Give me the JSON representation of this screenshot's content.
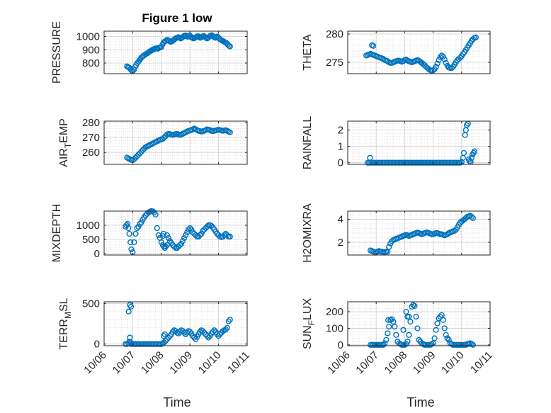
{
  "title": "Figure 1 low",
  "xlabel": "Time",
  "colors": {
    "marker": "#0072BD",
    "axis": "#262626",
    "grid": "#d9d9d9",
    "bg": "#ffffff"
  },
  "chart_data": [
    {
      "type": "scatter",
      "ylabel_parts": [
        "PRESSURE"
      ],
      "xlim": [
        6.0,
        11.0
      ],
      "ylim": [
        720,
        1040
      ],
      "yticks": [
        800,
        900,
        1000
      ],
      "x": [
        6.8,
        6.84,
        6.88,
        6.92,
        6.96,
        7.0,
        7.04,
        7.08,
        7.12,
        7.16,
        7.2,
        7.24,
        7.28,
        7.32,
        7.36,
        7.4,
        7.44,
        7.48,
        7.52,
        7.56,
        7.6,
        7.64,
        7.68,
        7.72,
        7.76,
        7.8,
        7.84,
        7.88,
        7.92,
        7.96,
        8.0,
        8.04,
        8.08,
        8.12,
        8.16,
        8.2,
        8.24,
        8.28,
        8.32,
        8.36,
        8.4,
        8.44,
        8.48,
        8.52,
        8.56,
        8.6,
        8.64,
        8.68,
        8.72,
        8.76,
        8.8,
        8.84,
        8.88,
        8.92,
        8.96,
        9.0,
        9.04,
        9.08,
        9.12,
        9.16,
        9.2,
        9.24,
        9.28,
        9.32,
        9.36,
        9.4,
        9.44,
        9.48,
        9.52,
        9.56,
        9.6,
        9.64,
        9.68,
        9.72,
        9.76,
        9.8,
        9.84,
        9.88,
        9.92,
        9.96,
        10.0,
        10.04,
        10.08,
        10.12,
        10.16,
        10.2,
        10.24,
        10.28,
        10.32,
        10.36,
        10.4
      ],
      "y": [
        775,
        770,
        765,
        755,
        745,
        740,
        750,
        770,
        785,
        800,
        810,
        822,
        835,
        845,
        852,
        858,
        865,
        870,
        875,
        882,
        888,
        892,
        898,
        902,
        906,
        910,
        912,
        908,
        915,
        918,
        920,
        940,
        955,
        962,
        968,
        975,
        972,
        965,
        960,
        962,
        968,
        975,
        982,
        988,
        992,
        995,
        990,
        985,
        990,
        998,
        1005,
        1008,
        1002,
        998,
        1004,
        1008,
        995,
        990,
        985,
        988,
        995,
        1000,
        1002,
        996,
        990,
        994,
        1000,
        1004,
        998,
        990,
        985,
        992,
        1000,
        1006,
        1010,
        1004,
        998,
        990,
        995,
        1000,
        990,
        980,
        975,
        970,
        965,
        960,
        955,
        950,
        940,
        930,
        925
      ]
    },
    {
      "type": "scatter",
      "ylabel_parts": [
        "THETA"
      ],
      "xlim": [
        6.0,
        11.0
      ],
      "ylim": [
        273,
        280.5
      ],
      "yticks": [
        275,
        280
      ],
      "x": [
        6.65,
        6.7,
        6.75,
        6.8,
        6.85,
        6.9,
        6.95,
        7.0,
        7.05,
        7.1,
        7.15,
        7.2,
        7.25,
        7.3,
        7.35,
        7.4,
        7.45,
        7.5,
        7.55,
        7.6,
        7.65,
        7.7,
        7.75,
        7.8,
        7.85,
        7.9,
        7.95,
        8.0,
        8.05,
        8.1,
        8.15,
        8.2,
        8.25,
        8.3,
        8.35,
        8.4,
        8.45,
        8.5,
        8.55,
        8.6,
        8.65,
        8.7,
        8.75,
        8.8,
        8.85,
        8.9,
        8.95,
        9.0,
        9.05,
        9.1,
        9.15,
        9.2,
        9.25,
        9.3,
        9.35,
        9.4,
        9.45,
        9.5,
        9.55,
        9.6,
        9.65,
        9.7,
        9.75,
        9.8,
        9.85,
        9.9,
        9.95,
        10.0,
        10.05,
        10.1,
        10.15,
        10.2,
        10.25,
        10.3,
        10.35,
        10.4,
        10.45,
        10.5,
        6.85,
        6.9
      ],
      "y": [
        276.2,
        276.3,
        276.4,
        276.5,
        276.4,
        276.3,
        276.2,
        276.1,
        276.0,
        275.9,
        275.8,
        275.7,
        275.6,
        275.4,
        275.3,
        275.2,
        275.0,
        274.9,
        274.9,
        275.0,
        275.1,
        275.2,
        275.3,
        275.3,
        275.2,
        275.1,
        275.2,
        275.4,
        275.5,
        275.3,
        275.2,
        275.1,
        275.0,
        275.1,
        275.2,
        275.3,
        275.4,
        275.3,
        275.1,
        274.9,
        274.7,
        274.5,
        274.2,
        274.0,
        273.8,
        273.6,
        273.5,
        273.6,
        273.8,
        274.2,
        274.8,
        275.4,
        275.9,
        276.2,
        276.0,
        275.5,
        274.9,
        274.4,
        274.1,
        274.0,
        274.0,
        274.2,
        274.6,
        275.0,
        275.4,
        275.6,
        275.8,
        276.1,
        276.5,
        276.8,
        277.2,
        277.6,
        278.0,
        278.4,
        278.8,
        279.1,
        279.3,
        279.4,
        278.0,
        277.9
      ]
    },
    {
      "type": "scatter",
      "ylabel_parts": [
        "AIR",
        "T",
        "EMP"
      ],
      "xlim": [
        6.0,
        11.0
      ],
      "ylim": [
        252,
        281
      ],
      "yticks": [
        260,
        270,
        280
      ],
      "x": [
        6.8,
        6.85,
        6.9,
        6.95,
        7.0,
        7.05,
        7.1,
        7.15,
        7.2,
        7.25,
        7.3,
        7.35,
        7.4,
        7.45,
        7.5,
        7.55,
        7.6,
        7.65,
        7.7,
        7.75,
        7.8,
        7.85,
        7.9,
        7.95,
        8.0,
        8.05,
        8.1,
        8.15,
        8.2,
        8.25,
        8.3,
        8.35,
        8.4,
        8.45,
        8.5,
        8.55,
        8.6,
        8.65,
        8.7,
        8.75,
        8.8,
        8.85,
        8.9,
        8.95,
        9.0,
        9.05,
        9.1,
        9.15,
        9.2,
        9.25,
        9.3,
        9.35,
        9.4,
        9.45,
        9.5,
        9.55,
        9.6,
        9.65,
        9.7,
        9.75,
        9.8,
        9.85,
        9.9,
        9.95,
        10.0,
        10.05,
        10.1,
        10.15,
        10.2,
        10.25,
        10.3,
        10.35,
        10.4
      ],
      "y": [
        256.5,
        256.0,
        255.5,
        255.0,
        254.8,
        255.5,
        256.5,
        257.5,
        258.5,
        259.5,
        260.5,
        261.5,
        262.5,
        263.5,
        264.0,
        264.5,
        265.0,
        265.5,
        266.0,
        266.5,
        267.0,
        267.5,
        268.0,
        268.5,
        268.8,
        269.0,
        270.0,
        271.0,
        272.0,
        272.5,
        272.3,
        272.0,
        271.8,
        272.0,
        272.3,
        272.5,
        272.0,
        271.8,
        272.0,
        272.5,
        273.0,
        273.5,
        274.0,
        274.5,
        274.8,
        275.0,
        275.5,
        276.0,
        275.5,
        275.0,
        274.5,
        274.3,
        274.0,
        274.2,
        274.5,
        275.0,
        275.5,
        275.3,
        275.0,
        274.5,
        274.3,
        274.5,
        274.8,
        275.0,
        275.2,
        275.0,
        274.8,
        274.5,
        274.7,
        274.9,
        274.5,
        274.0,
        273.5
      ]
    },
    {
      "type": "scatter",
      "ylabel_parts": [
        "RAINFALL"
      ],
      "xlim": [
        6.0,
        11.0
      ],
      "ylim": [
        -0.1,
        2.55
      ],
      "yticks": [
        0,
        1,
        2
      ],
      "x": [
        6.7,
        6.75,
        6.8,
        6.85,
        6.9,
        6.95,
        7.0,
        7.05,
        7.1,
        7.15,
        7.2,
        7.25,
        7.3,
        7.35,
        7.4,
        7.45,
        7.5,
        7.55,
        7.6,
        7.65,
        7.7,
        7.75,
        7.8,
        7.85,
        7.9,
        7.95,
        8.0,
        8.05,
        8.1,
        8.15,
        8.2,
        8.25,
        8.3,
        8.35,
        8.4,
        8.45,
        8.5,
        8.55,
        8.6,
        8.65,
        8.7,
        8.75,
        8.8,
        8.85,
        8.9,
        8.95,
        9.0,
        9.05,
        9.1,
        9.15,
        9.2,
        9.25,
        9.3,
        9.35,
        9.4,
        9.45,
        9.5,
        9.55,
        9.6,
        9.65,
        9.7,
        9.75,
        9.8,
        9.85,
        9.9,
        9.95,
        10.0,
        10.05,
        10.08,
        10.12,
        10.15,
        10.18,
        10.22,
        10.25,
        10.28,
        10.32,
        10.35,
        10.38,
        10.42,
        10.45,
        6.78
      ],
      "y": [
        0,
        0,
        0,
        0,
        0,
        0,
        0,
        0,
        0,
        0,
        0,
        0,
        0,
        0,
        0,
        0,
        0,
        0,
        0,
        0,
        0,
        0,
        0,
        0,
        0,
        0,
        0,
        0,
        0,
        0,
        0,
        0,
        0,
        0,
        0,
        0,
        0,
        0,
        0,
        0,
        0,
        0,
        0,
        0,
        0,
        0,
        0,
        0,
        0,
        0,
        0,
        0,
        0,
        0,
        0,
        0,
        0,
        0,
        0,
        0,
        0,
        0,
        0,
        0,
        0,
        0,
        0.05,
        0.3,
        0.6,
        1.7,
        2.0,
        2.3,
        2.4,
        0.2,
        0.1,
        0.05,
        0.3,
        0.5,
        0.6,
        0.7,
        0.3
      ]
    },
    {
      "type": "scatter",
      "ylabel_parts": [
        "MIXDEPTH"
      ],
      "xlim": [
        6.0,
        11.0
      ],
      "ylim": [
        -50,
        1500
      ],
      "yticks": [
        0,
        500,
        1000
      ],
      "x": [
        6.75,
        6.78,
        6.82,
        6.85,
        6.88,
        6.92,
        6.95,
        7.0,
        7.05,
        7.1,
        7.15,
        7.2,
        7.25,
        7.3,
        7.35,
        7.4,
        7.45,
        7.5,
        7.55,
        7.6,
        7.65,
        7.7,
        7.75,
        7.8,
        7.85,
        7.9,
        7.95,
        8.0,
        8.05,
        8.1,
        8.15,
        8.2,
        8.25,
        8.3,
        8.35,
        8.4,
        8.45,
        8.5,
        8.55,
        8.6,
        8.65,
        8.7,
        8.75,
        8.8,
        8.85,
        8.9,
        8.95,
        9.0,
        9.05,
        9.1,
        9.15,
        9.2,
        9.25,
        9.3,
        9.35,
        9.4,
        9.45,
        9.5,
        9.55,
        9.6,
        9.65,
        9.7,
        9.75,
        9.8,
        9.85,
        9.9,
        9.95,
        10.0,
        10.05,
        10.1,
        10.15,
        10.2,
        10.25,
        10.3,
        10.35,
        10.4,
        8.05,
        8.12,
        8.2,
        8.08
      ],
      "y": [
        950,
        1000,
        1050,
        900,
        700,
        400,
        150,
        50,
        400,
        700,
        900,
        950,
        1050,
        1100,
        1200,
        1280,
        1350,
        1400,
        1450,
        1480,
        1500,
        1490,
        1450,
        1380,
        900,
        650,
        550,
        400,
        300,
        250,
        250,
        650,
        550,
        450,
        380,
        300,
        250,
        200,
        200,
        250,
        300,
        350,
        450,
        550,
        650,
        750,
        850,
        900,
        850,
        750,
        700,
        650,
        600,
        600,
        650,
        700,
        800,
        850,
        900,
        950,
        1000,
        1000,
        980,
        920,
        850,
        780,
        700,
        650,
        600,
        580,
        600,
        650,
        700,
        650,
        600,
        600,
        620,
        200,
        300,
        700
      ]
    },
    {
      "type": "scatter",
      "ylabel_parts": [
        "H2OMIXRA"
      ],
      "xlim": [
        6.0,
        11.0
      ],
      "ylim": [
        0.9,
        4.7
      ],
      "yticks": [
        2,
        4
      ],
      "x": [
        6.8,
        6.85,
        6.9,
        6.95,
        7.0,
        7.05,
        7.1,
        7.15,
        7.2,
        7.25,
        7.3,
        7.35,
        7.4,
        7.45,
        7.5,
        7.55,
        7.6,
        7.65,
        7.7,
        7.75,
        7.8,
        7.85,
        7.9,
        7.95,
        8.0,
        8.05,
        8.1,
        8.15,
        8.2,
        8.25,
        8.3,
        8.35,
        8.4,
        8.45,
        8.5,
        8.55,
        8.6,
        8.65,
        8.7,
        8.75,
        8.8,
        8.85,
        8.9,
        8.95,
        9.0,
        9.05,
        9.1,
        9.15,
        9.2,
        9.25,
        9.3,
        9.35,
        9.4,
        9.45,
        9.5,
        9.55,
        9.6,
        9.65,
        9.7,
        9.75,
        9.8,
        9.85,
        9.9,
        9.95,
        10.0,
        10.05,
        10.1,
        10.15,
        10.2,
        10.25,
        10.3,
        10.35,
        10.4
      ],
      "y": [
        1.3,
        1.25,
        1.2,
        1.1,
        1.15,
        1.2,
        1.25,
        1.2,
        1.2,
        1.15,
        1.15,
        1.2,
        1.2,
        1.6,
        1.9,
        2.1,
        2.2,
        2.25,
        2.3,
        2.35,
        2.4,
        2.45,
        2.5,
        2.55,
        2.6,
        2.65,
        2.6,
        2.55,
        2.6,
        2.65,
        2.7,
        2.75,
        2.8,
        2.85,
        2.8,
        2.75,
        2.7,
        2.75,
        2.8,
        2.85,
        2.85,
        2.8,
        2.75,
        2.7,
        2.7,
        2.75,
        2.8,
        2.8,
        2.75,
        2.7,
        2.7,
        2.65,
        2.6,
        2.65,
        2.7,
        2.8,
        2.85,
        2.9,
        2.95,
        3.0,
        3.1,
        3.3,
        3.5,
        3.7,
        3.8,
        3.9,
        4.0,
        4.1,
        4.2,
        4.25,
        4.3,
        4.2,
        4.1
      ]
    },
    {
      "type": "scatter",
      "ylabel_parts": [
        "TERR",
        "M",
        "SL"
      ],
      "xlim": [
        6.0,
        11.0
      ],
      "ylim": [
        -20,
        520
      ],
      "yticks": [
        0,
        500
      ],
      "x": [
        6.75,
        6.8,
        6.85,
        6.88,
        6.9,
        6.92,
        6.95,
        7.0,
        7.05,
        7.1,
        7.15,
        7.2,
        7.25,
        7.3,
        7.35,
        7.4,
        7.45,
        7.5,
        7.55,
        7.6,
        7.65,
        7.7,
        7.75,
        7.8,
        7.85,
        7.9,
        7.95,
        8.0,
        8.05,
        8.1,
        8.15,
        8.2,
        8.25,
        8.3,
        8.35,
        8.4,
        8.45,
        8.5,
        8.55,
        8.6,
        8.65,
        8.7,
        8.75,
        8.8,
        8.85,
        8.9,
        8.95,
        9.0,
        9.05,
        9.1,
        9.15,
        9.2,
        9.25,
        9.3,
        9.35,
        9.4,
        9.45,
        9.5,
        9.55,
        9.6,
        9.65,
        9.7,
        9.75,
        9.8,
        9.85,
        9.9,
        9.95,
        10.0,
        10.05,
        10.1,
        10.15,
        10.2,
        10.25,
        10.3,
        10.35,
        10.4,
        6.86,
        6.9,
        6.94,
        8.08,
        8.12
      ],
      "y": [
        0,
        0,
        10,
        30,
        80,
        20,
        0,
        0,
        0,
        0,
        0,
        0,
        0,
        0,
        0,
        0,
        0,
        0,
        0,
        0,
        0,
        0,
        0,
        0,
        0,
        0,
        0,
        0,
        10,
        20,
        40,
        60,
        80,
        100,
        120,
        150,
        170,
        160,
        140,
        130,
        150,
        170,
        160,
        140,
        120,
        140,
        160,
        150,
        130,
        100,
        80,
        60,
        90,
        120,
        150,
        170,
        160,
        140,
        120,
        100,
        80,
        100,
        130,
        150,
        170,
        150,
        120,
        100,
        120,
        140,
        160,
        170,
        180,
        200,
        280,
        300,
        400,
        480,
        460,
        100,
        120
      ]
    },
    {
      "type": "scatter",
      "ylabel_parts": [
        "SUN",
        "F",
        "LUX"
      ],
      "xlim": [
        6.0,
        11.0
      ],
      "ylim": [
        -5,
        260
      ],
      "yticks": [
        0,
        100,
        200
      ],
      "x": [
        6.8,
        6.85,
        6.9,
        6.95,
        7.0,
        7.05,
        7.1,
        7.15,
        7.2,
        7.25,
        7.3,
        7.35,
        7.4,
        7.45,
        7.5,
        7.55,
        7.6,
        7.65,
        7.7,
        7.75,
        7.8,
        7.85,
        7.9,
        7.95,
        8.0,
        8.05,
        8.1,
        8.15,
        8.2,
        8.25,
        8.3,
        8.35,
        8.4,
        8.45,
        8.5,
        8.55,
        8.6,
        8.65,
        8.7,
        8.75,
        8.8,
        8.85,
        8.9,
        8.95,
        9.0,
        9.05,
        9.1,
        9.15,
        9.2,
        9.25,
        9.3,
        9.35,
        9.4,
        9.45,
        9.5,
        9.55,
        9.6,
        9.65,
        9.7,
        9.75,
        9.8,
        9.85,
        9.9,
        9.95,
        10.0,
        10.05,
        10.1,
        10.15,
        10.2,
        10.25,
        10.3,
        10.35,
        10.4,
        7.42,
        7.5,
        7.95,
        8.05,
        8.1,
        8.15
      ],
      "y": [
        0,
        0,
        0,
        0,
        0,
        0,
        0,
        0,
        0,
        0,
        10,
        30,
        70,
        110,
        150,
        155,
        140,
        110,
        60,
        20,
        10,
        5,
        0,
        0,
        0,
        5,
        20,
        60,
        140,
        230,
        240,
        235,
        170,
        100,
        30,
        20,
        10,
        5,
        0,
        0,
        0,
        0,
        0,
        5,
        10,
        40,
        90,
        130,
        160,
        170,
        180,
        150,
        100,
        60,
        40,
        30,
        10,
        5,
        0,
        0,
        0,
        0,
        0,
        0,
        0,
        0,
        0,
        0,
        5,
        5,
        10,
        5,
        0,
        150,
        150,
        90,
        200,
        170,
        170
      ]
    }
  ],
  "x_ticks": [
    "10/06",
    "10/07",
    "10/08",
    "10/09",
    "10/10",
    "10/11"
  ]
}
